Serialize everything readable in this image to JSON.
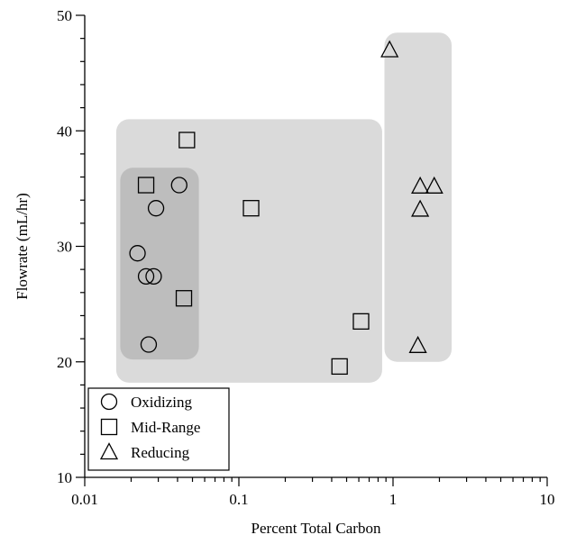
{
  "chart_data": {
    "type": "scatter",
    "title": "",
    "xlabel": "Percent Total Carbon",
    "ylabel": "Flowrate (mL/hr)",
    "xscale": "log",
    "xlim": [
      0.01,
      10
    ],
    "ylim": [
      10,
      50
    ],
    "x_ticks": [
      {
        "value": 0.01,
        "label": "0.01"
      },
      {
        "value": 0.1,
        "label": "0.1"
      },
      {
        "value": 1,
        "label": "1"
      },
      {
        "value": 10,
        "label": "10"
      }
    ],
    "y_ticks": [
      {
        "value": 10,
        "label": "10"
      },
      {
        "value": 20,
        "label": "20"
      },
      {
        "value": 30,
        "label": "30"
      },
      {
        "value": 40,
        "label": "40"
      },
      {
        "value": 50,
        "label": "50"
      }
    ],
    "grid": false,
    "legend_position": "bottom-left",
    "series": [
      {
        "name": "Oxidizing",
        "marker": "circle",
        "points": [
          {
            "x": 0.022,
            "y": 29.4
          },
          {
            "x": 0.025,
            "y": 27.4
          },
          {
            "x": 0.028,
            "y": 27.4
          },
          {
            "x": 0.029,
            "y": 33.3
          },
          {
            "x": 0.026,
            "y": 21.5
          },
          {
            "x": 0.041,
            "y": 35.3
          }
        ]
      },
      {
        "name": "Mid-Range",
        "marker": "square",
        "points": [
          {
            "x": 0.025,
            "y": 35.3
          },
          {
            "x": 0.046,
            "y": 39.2
          },
          {
            "x": 0.044,
            "y": 25.5
          },
          {
            "x": 0.12,
            "y": 33.3
          },
          {
            "x": 0.45,
            "y": 19.6
          },
          {
            "x": 0.62,
            "y": 23.5
          }
        ]
      },
      {
        "name": "Reducing",
        "marker": "triangle",
        "points": [
          {
            "x": 0.95,
            "y": 47.0
          },
          {
            "x": 1.5,
            "y": 35.2
          },
          {
            "x": 1.85,
            "y": 35.2
          },
          {
            "x": 1.5,
            "y": 33.2
          },
          {
            "x": 1.45,
            "y": 21.4
          }
        ]
      }
    ],
    "regions": [
      {
        "name": "mid-range-region",
        "x": [
          0.016,
          0.85
        ],
        "y": [
          18.2,
          41.0
        ],
        "color": "#dadada"
      },
      {
        "name": "reducing-region",
        "x": [
          0.88,
          2.4
        ],
        "y": [
          20.0,
          48.5
        ],
        "color": "#dadada"
      },
      {
        "name": "oxidizing-region",
        "x": [
          0.017,
          0.055
        ],
        "y": [
          20.2,
          36.8
        ],
        "color": "#bdbdbd"
      }
    ]
  }
}
